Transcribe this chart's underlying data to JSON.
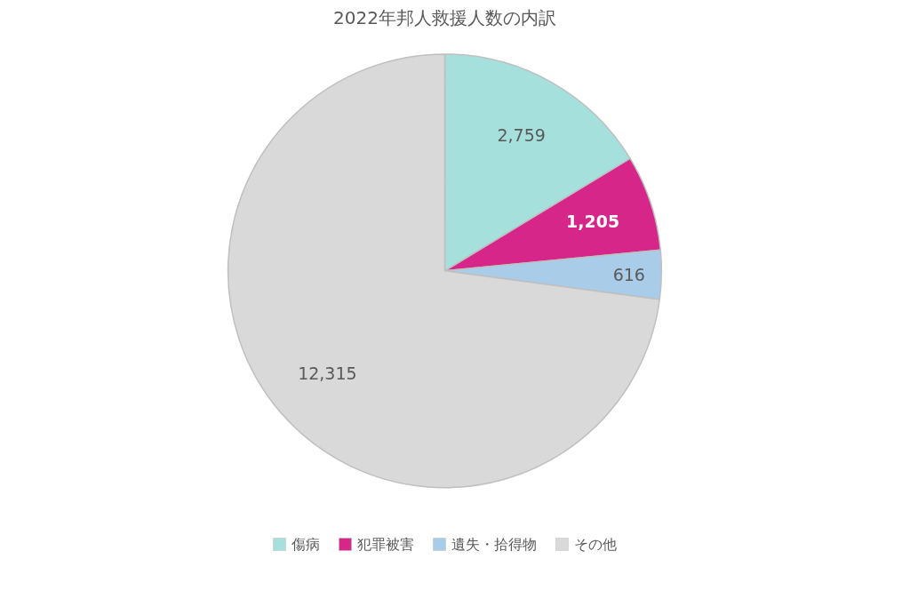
{
  "chart_data": {
    "type": "pie",
    "title": "2022年邦人救援人数の内訳",
    "categories": [
      "傷病",
      "犯罪被害",
      "遺失・拾得物",
      "その他"
    ],
    "values": [
      2759,
      1205,
      616,
      12315
    ],
    "colors": [
      "#a5e0dc",
      "#d6268a",
      "#a9cde9",
      "#d9d9d9"
    ],
    "value_labels": [
      "2,759",
      "1,205",
      "616",
      "12,315"
    ],
    "legend": "bottom"
  }
}
